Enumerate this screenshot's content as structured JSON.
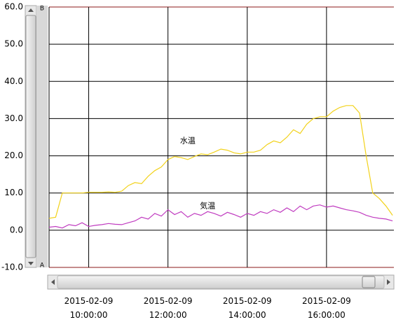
{
  "chart_data": {
    "type": "line",
    "annotations": [
      {
        "text": "水温",
        "x": "2015-02-09 12:30:00",
        "y": 24
      },
      {
        "text": "気温",
        "x": "2015-02-09 13:00:00",
        "y": 6.5
      }
    ],
    "scroll_markers": {
      "top": "B",
      "bottom": "A"
    },
    "x": [
      "2015-02-09 09:00:00",
      "2015-02-09 09:10:00",
      "2015-02-09 09:20:00",
      "2015-02-09 09:30:00",
      "2015-02-09 09:40:00",
      "2015-02-09 09:50:00",
      "2015-02-09 10:00:00",
      "2015-02-09 10:10:00",
      "2015-02-09 10:20:00",
      "2015-02-09 10:30:00",
      "2015-02-09 10:40:00",
      "2015-02-09 10:50:00",
      "2015-02-09 11:00:00",
      "2015-02-09 11:10:00",
      "2015-02-09 11:20:00",
      "2015-02-09 11:30:00",
      "2015-02-09 11:40:00",
      "2015-02-09 11:50:00",
      "2015-02-09 12:00:00",
      "2015-02-09 12:10:00",
      "2015-02-09 12:20:00",
      "2015-02-09 12:30:00",
      "2015-02-09 12:40:00",
      "2015-02-09 12:50:00",
      "2015-02-09 13:00:00",
      "2015-02-09 13:10:00",
      "2015-02-09 13:20:00",
      "2015-02-09 13:30:00",
      "2015-02-09 13:40:00",
      "2015-02-09 13:50:00",
      "2015-02-09 14:00:00",
      "2015-02-09 14:10:00",
      "2015-02-09 14:20:00",
      "2015-02-09 14:30:00",
      "2015-02-09 14:40:00",
      "2015-02-09 14:50:00",
      "2015-02-09 15:00:00",
      "2015-02-09 15:10:00",
      "2015-02-09 15:20:00",
      "2015-02-09 15:30:00",
      "2015-02-09 15:40:00",
      "2015-02-09 15:50:00",
      "2015-02-09 16:00:00",
      "2015-02-09 16:10:00",
      "2015-02-09 16:20:00",
      "2015-02-09 16:30:00",
      "2015-02-09 16:40:00",
      "2015-02-09 16:50:00",
      "2015-02-09 17:00:00",
      "2015-02-09 17:10:00",
      "2015-02-09 17:20:00",
      "2015-02-09 17:30:00",
      "2015-02-09 17:40:00"
    ],
    "series": [
      {
        "name": "水温",
        "color": "#f2d21b",
        "values": [
          3.2,
          3.5,
          10,
          10,
          10,
          10,
          10.2,
          10.2,
          10.2,
          10.3,
          10.2,
          10.5,
          12,
          12.8,
          12.5,
          14.5,
          16,
          17,
          19,
          19.8,
          19.5,
          19,
          19.8,
          20.5,
          20.3,
          21,
          21.8,
          21.5,
          20.8,
          20.5,
          21,
          21,
          21.5,
          23,
          24,
          23.5,
          25,
          27,
          26,
          28.5,
          30,
          30.5,
          30.5,
          32,
          33,
          33.5,
          33.5,
          31.5,
          20,
          10,
          8.5,
          6.5,
          4
        ]
      },
      {
        "name": "気温",
        "color": "#c03cc0",
        "values": [
          0.8,
          1.0,
          0.6,
          1.5,
          1.2,
          2.0,
          1.0,
          1.3,
          1.5,
          1.8,
          1.6,
          1.5,
          2.0,
          2.5,
          3.5,
          3.0,
          4.5,
          3.8,
          5.5,
          4.2,
          5.0,
          3.5,
          4.5,
          4.0,
          5.0,
          4.5,
          3.8,
          4.8,
          4.2,
          3.5,
          4.5,
          4.0,
          5.0,
          4.5,
          5.5,
          4.8,
          6.0,
          5.0,
          6.5,
          5.5,
          6.5,
          6.8,
          6.2,
          6.5,
          6.0,
          5.5,
          5.2,
          4.8,
          4.0,
          3.5,
          3.2,
          3.0,
          2.5
        ]
      }
    ],
    "xlim": [
      "2015-02-09 09:00:00",
      "2015-02-09 17:42:00"
    ],
    "xticks": [
      "2015-02-09 10:00:00",
      "2015-02-09 12:00:00",
      "2015-02-09 14:00:00",
      "2015-02-09 16:00:00"
    ],
    "ylim": [
      -10,
      60
    ],
    "yticks": [
      {
        "value": -10,
        "label": "-10.0"
      },
      {
        "value": 0,
        "label": "0.0"
      },
      {
        "value": 10,
        "label": "10.0"
      },
      {
        "value": 20,
        "label": "20.0"
      },
      {
        "value": 30,
        "label": "30.0"
      },
      {
        "value": 40,
        "label": "40.0"
      },
      {
        "value": 50,
        "label": "50.0"
      },
      {
        "value": 60,
        "label": "60.0"
      }
    ],
    "grid": true
  }
}
